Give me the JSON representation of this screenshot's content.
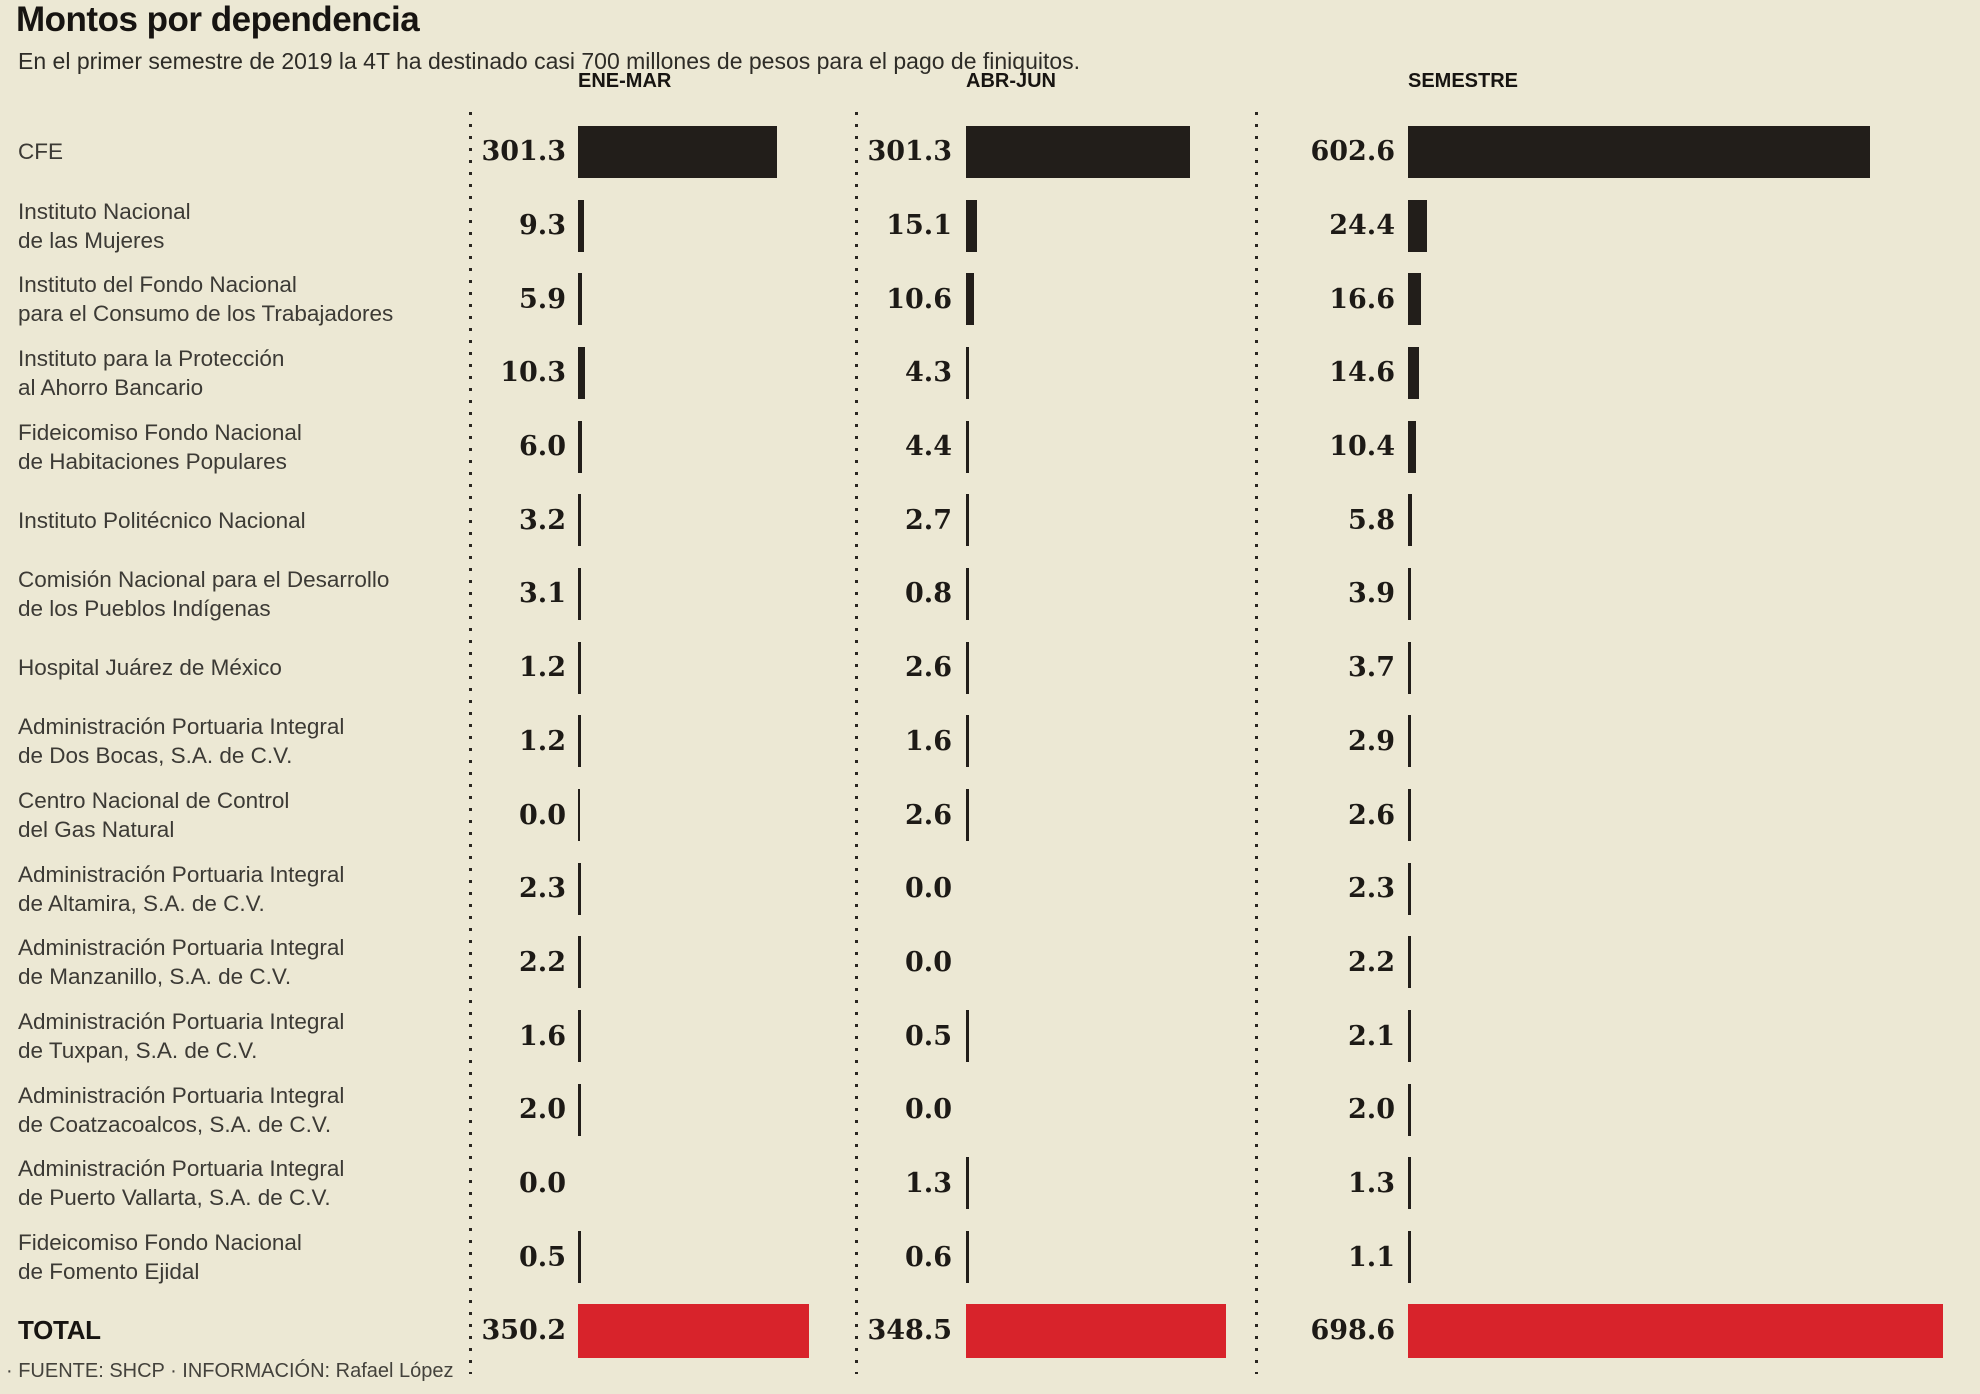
{
  "title": "Montos por dependencia",
  "subtitle": "En el primer semestre de 2019 la 4T ha destinado casi 700 millones de pesos para el pago de finiquitos.",
  "source_note": "· FUENTE: SHCP · INFORMACIÓN: Rafael López",
  "colors": {
    "background": "#ece8d4",
    "bar_black": "#221e1a",
    "bar_red_total": "#d8232b",
    "label_text": "#3c3a35",
    "heading_text": "#171411"
  },
  "chart_data": {
    "type": "bar",
    "orientation": "horizontal",
    "value_unit": "millones de pesos",
    "columns": [
      "ENE-MAR",
      "ABR-JUN",
      "SEMESTRE"
    ],
    "rows": [
      {
        "label_lines": [
          "CFE"
        ],
        "values": [
          301.3,
          301.3,
          602.6
        ]
      },
      {
        "label_lines": [
          "Instituto Nacional",
          "de las Mujeres"
        ],
        "values": [
          9.3,
          15.1,
          24.4
        ]
      },
      {
        "label_lines": [
          "Instituto del Fondo Nacional",
          "para el Consumo de los Trabajadores"
        ],
        "values": [
          5.9,
          10.6,
          16.6
        ]
      },
      {
        "label_lines": [
          "Instituto para la Protección",
          "al Ahorro Bancario"
        ],
        "values": [
          10.3,
          4.3,
          14.6
        ]
      },
      {
        "label_lines": [
          "Fideicomiso Fondo Nacional",
          "de Habitaciones Populares"
        ],
        "values": [
          6.0,
          4.4,
          10.4
        ]
      },
      {
        "label_lines": [
          "Instituto Politécnico Nacional"
        ],
        "values": [
          3.2,
          2.7,
          5.8
        ]
      },
      {
        "label_lines": [
          "Comisión Nacional para el Desarrollo",
          "de los Pueblos Indígenas"
        ],
        "values": [
          3.1,
          0.8,
          3.9
        ]
      },
      {
        "label_lines": [
          "Hospital Juárez de México"
        ],
        "values": [
          1.2,
          2.6,
          3.7
        ]
      },
      {
        "label_lines": [
          "Administración Portuaria Integral",
          "de Dos Bocas, S.A. de C.V."
        ],
        "values": [
          1.2,
          1.6,
          2.9
        ]
      },
      {
        "label_lines": [
          "Centro Nacional de Control",
          "del Gas Natural"
        ],
        "values": [
          0.0,
          2.6,
          2.6
        ],
        "zero_tick_columns": [
          0
        ]
      },
      {
        "label_lines": [
          "Administración Portuaria Integral",
          "de Altamira, S.A. de C.V."
        ],
        "values": [
          2.3,
          0.0,
          2.3
        ]
      },
      {
        "label_lines": [
          "Administración Portuaria Integral",
          "de Manzanillo, S.A. de C.V."
        ],
        "values": [
          2.2,
          0.0,
          2.2
        ]
      },
      {
        "label_lines": [
          "Administración Portuaria Integral",
          "de Tuxpan, S.A. de C.V."
        ],
        "values": [
          1.6,
          0.5,
          2.1
        ]
      },
      {
        "label_lines": [
          "Administración Portuaria Integral",
          "de Coatzacoalcos, S.A. de C.V."
        ],
        "values": [
          2.0,
          0.0,
          2.0
        ]
      },
      {
        "label_lines": [
          "Administración Portuaria Integral",
          "de Puerto Vallarta, S.A. de C.V."
        ],
        "values": [
          0.0,
          1.3,
          1.3
        ]
      },
      {
        "label_lines": [
          "Fideicomiso Fondo Nacional",
          "de Fomento Ejidal"
        ],
        "values": [
          0.5,
          0.6,
          1.1
        ]
      }
    ],
    "total_row": {
      "label": "TOTAL",
      "values": [
        350.2,
        348.5,
        698.6
      ]
    }
  }
}
